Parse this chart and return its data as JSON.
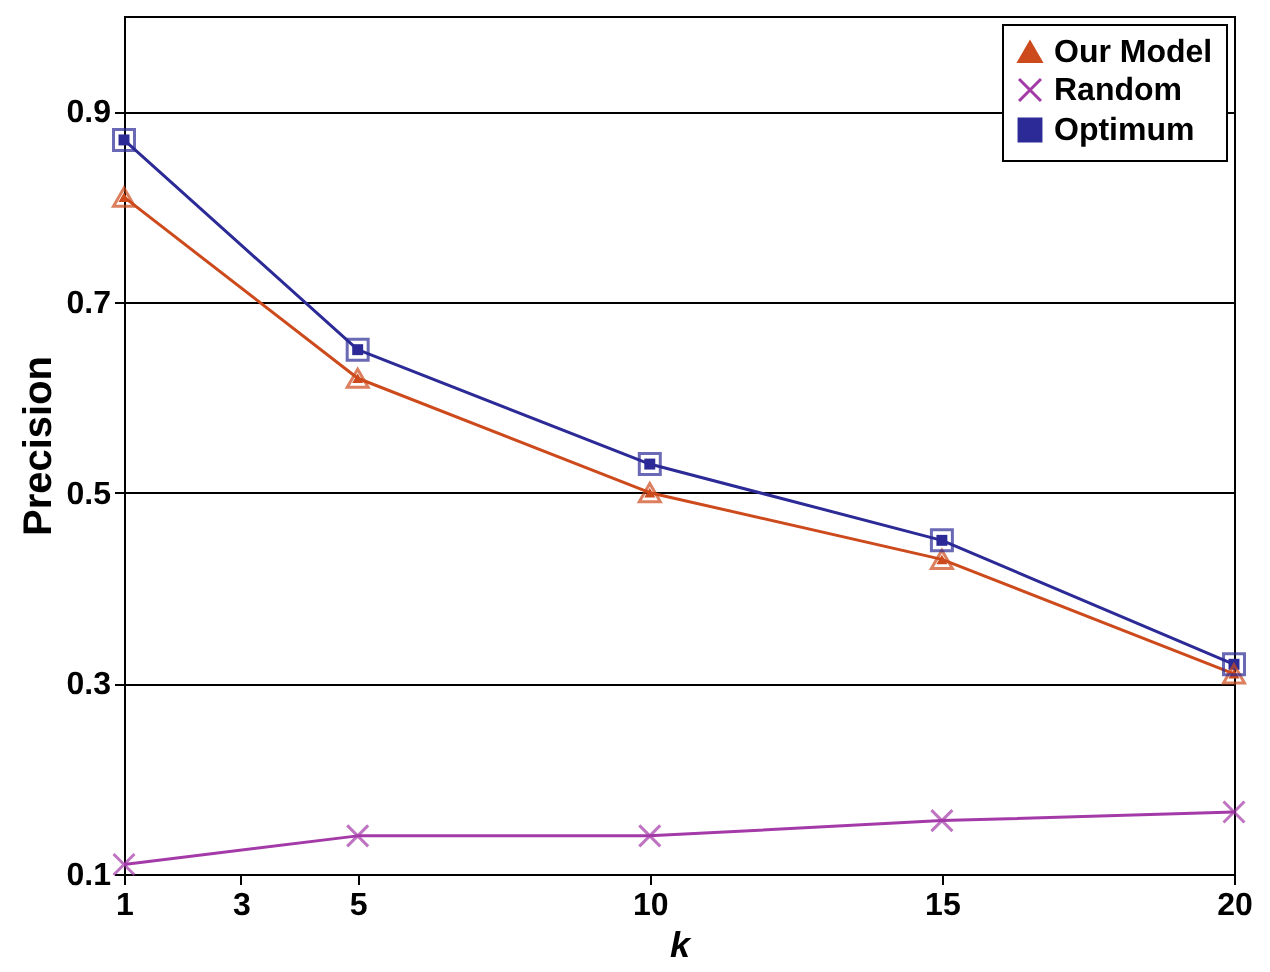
{
  "chart_data": {
    "type": "line",
    "xlabel": "k",
    "ylabel": "Precision",
    "x": [
      1,
      5,
      10,
      15,
      20
    ],
    "series": [
      {
        "name": "Our Model",
        "color": "#cc4a1c",
        "marker": "triangle",
        "values": [
          0.81,
          0.62,
          0.5,
          0.43,
          0.31
        ]
      },
      {
        "name": "Random",
        "color": "#a33aa8",
        "marker": "cross",
        "values": [
          0.11,
          0.14,
          0.14,
          0.156,
          0.165
        ]
      },
      {
        "name": "Optimum",
        "color": "#2b2a96",
        "marker": "square",
        "values": [
          0.87,
          0.65,
          0.53,
          0.45,
          0.32
        ]
      }
    ],
    "xlim": [
      1,
      20
    ],
    "xticks": [
      1,
      3,
      5,
      10,
      15,
      20
    ],
    "ylim": [
      0.1,
      1.0
    ],
    "yticks": [
      0.1,
      0.3,
      0.5,
      0.7,
      0.9
    ],
    "grid": "y",
    "legend": "top right",
    "line_style": "solid"
  }
}
